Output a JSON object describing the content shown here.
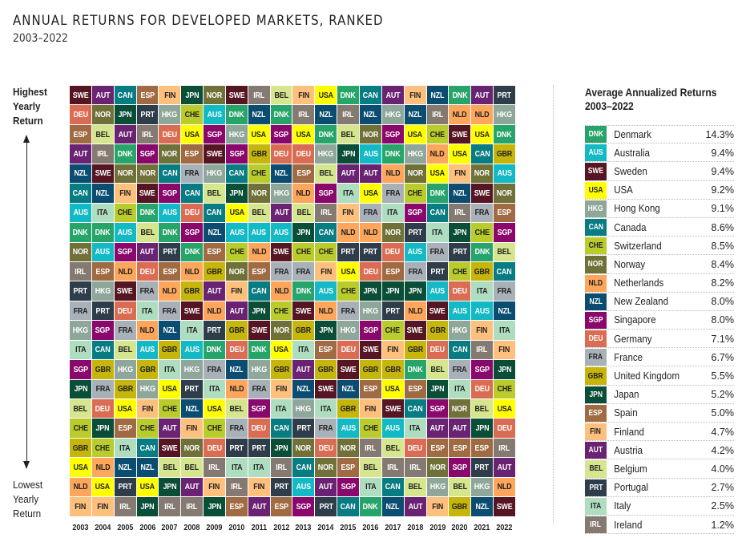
{
  "header": {
    "title": "ANNUAL RETURNS FOR DEVELOPED MARKETS, RANKED",
    "subtitle": "2003–2022"
  },
  "axis": {
    "top_label": [
      "Highest",
      "Yearly",
      "Return"
    ],
    "bottom_label": [
      "Lowest",
      "Yearly",
      "Return"
    ]
  },
  "legend": {
    "title_line1": "Average Annualized Returns",
    "title_line2": "2003–2022"
  },
  "colors": {
    "DNK": {
      "bg": "#27a46a",
      "fg": "#ffffff"
    },
    "AUS": {
      "bg": "#13b9c4",
      "fg": "#ffffff"
    },
    "SWE": {
      "bg": "#561522",
      "fg": "#ffffff"
    },
    "USA": {
      "bg": "#ffff00",
      "fg": "#222222"
    },
    "HKG": {
      "bg": "#8fa69a",
      "fg": "#ffffff"
    },
    "CAN": {
      "bg": "#087c83",
      "fg": "#ffffff"
    },
    "CHE": {
      "bg": "#b9cc2c",
      "fg": "#222222"
    },
    "NOR": {
      "bg": "#707039",
      "fg": "#ffffff"
    },
    "NLD": {
      "bg": "#fda65c",
      "fg": "#222222"
    },
    "NZL": {
      "bg": "#0b4d70",
      "fg": "#ffffff"
    },
    "SGP": {
      "bg": "#8a086c",
      "fg": "#ffffff"
    },
    "DEU": {
      "bg": "#d96c52",
      "fg": "#ffffff"
    },
    "FRA": {
      "bg": "#a8b0b8",
      "fg": "#222222"
    },
    "GBR": {
      "bg": "#c6b50a",
      "fg": "#222222"
    },
    "JPN": {
      "bg": "#0a4e38",
      "fg": "#ffffff"
    },
    "ESP": {
      "bg": "#a06a42",
      "fg": "#ffffff"
    },
    "FIN": {
      "bg": "#fec07c",
      "fg": "#222222"
    },
    "AUT": {
      "bg": "#6a2272",
      "fg": "#ffffff"
    },
    "BEL": {
      "bg": "#d6e68e",
      "fg": "#222222"
    },
    "PRT": {
      "bg": "#2f3d4a",
      "fg": "#ffffff"
    },
    "ITA": {
      "bg": "#aeddc0",
      "fg": "#222222"
    },
    "IRL": {
      "bg": "#857a72",
      "fg": "#ffffff"
    }
  },
  "chart_data": {
    "type": "heatmap",
    "title": "ANNUAL RETURNS FOR DEVELOPED MARKETS, RANKED",
    "subtitle": "2003–2022",
    "ylabel_top": "Highest Yearly Return",
    "ylabel_bottom": "Lowest Yearly Return",
    "x": [
      "2003",
      "2004",
      "2005",
      "2006",
      "2007",
      "2008",
      "2009",
      "2010",
      "2011",
      "2012",
      "2013",
      "2014",
      "2015",
      "2016",
      "2017",
      "2018",
      "2019",
      "2020",
      "2021",
      "2022"
    ],
    "rankings_by_year": {
      "2003": [
        "SWE",
        "DEU",
        "ESP",
        "AUT",
        "NZL",
        "CAN",
        "AUS",
        "DNK",
        "NOR",
        "IRL",
        "PRT",
        "FRA",
        "HKG",
        "ITA",
        "SGP",
        "JPN",
        "BEL",
        "CHE",
        "GBR",
        "USA",
        "NLD",
        "FIN"
      ],
      "2004": [
        "AUT",
        "NOR",
        "BEL",
        "IRL",
        "SWE",
        "NZL",
        "ITA",
        "DNK",
        "AUS",
        "ESP",
        "HKG",
        "PRT",
        "SGP",
        "CAN",
        "GBR",
        "FRA",
        "DEU",
        "JPN",
        "CHE",
        "NLD",
        "USA",
        "FIN"
      ],
      "2005": [
        "CAN",
        "JPN",
        "AUT",
        "DNK",
        "NOR",
        "FIN",
        "CHE",
        "AUS",
        "SGP",
        "NLD",
        "SWE",
        "DEU",
        "FRA",
        "BEL",
        "HKG",
        "GBR",
        "USA",
        "ESP",
        "ITA",
        "NZL",
        "PRT",
        "IRL"
      ],
      "2006": [
        "ESP",
        "PRT",
        "IRL",
        "SGP",
        "NOR",
        "SWE",
        "DNK",
        "BEL",
        "AUT",
        "DEU",
        "FRA",
        "ITA",
        "NLD",
        "AUS",
        "GBR",
        "HKG",
        "FIN",
        "CHE",
        "CAN",
        "NZL",
        "USA",
        "JPN"
      ],
      "2007": [
        "FIN",
        "HKG",
        "DEU",
        "NOR",
        "CAN",
        "SGP",
        "AUS",
        "DNK",
        "PRT",
        "ESP",
        "NLD",
        "FRA",
        "NZL",
        "GBR",
        "ITA",
        "USA",
        "CHE",
        "AUT",
        "SWE",
        "BEL",
        "JPN",
        "IRL"
      ],
      "2008": [
        "JPN",
        "CHE",
        "USA",
        "ESP",
        "FRA",
        "CAN",
        "DEU",
        "SGP",
        "DNK",
        "NLD",
        "GBR",
        "SWE",
        "ITA",
        "AUS",
        "HKG",
        "PRT",
        "NZL",
        "FIN",
        "NOR",
        "BEL",
        "AUT",
        "IRL"
      ],
      "2009": [
        "NOR",
        "AUS",
        "SGP",
        "SWE",
        "HKG",
        "BEL",
        "CAN",
        "NZL",
        "ESP",
        "GBR",
        "AUT",
        "NLD",
        "PRT",
        "DNK",
        "FRA",
        "ITA",
        "USA",
        "CHE",
        "DEU",
        "IRL",
        "FIN",
        "JPN"
      ],
      "2010": [
        "SWE",
        "DNK",
        "HKG",
        "SGP",
        "CAN",
        "JPN",
        "USA",
        "AUS",
        "CHE",
        "NOR",
        "FIN",
        "AUT",
        "GBR",
        "DEU",
        "NZL",
        "NLD",
        "BEL",
        "FRA",
        "PRT",
        "ITA",
        "IRL",
        "ESP"
      ],
      "2011": [
        "IRL",
        "NZL",
        "USA",
        "GBR",
        "CHE",
        "NOR",
        "BEL",
        "AUS",
        "NLD",
        "ESP",
        "CAN",
        "JPN",
        "SWE",
        "DNK",
        "HKG",
        "FRA",
        "SGP",
        "DEU",
        "PRT",
        "ITA",
        "FIN",
        "AUT"
      ],
      "2012": [
        "BEL",
        "DNK",
        "SGP",
        "DEU",
        "NZL",
        "HKG",
        "AUT",
        "AUS",
        "SWE",
        "FRA",
        "NLD",
        "CHE",
        "NOR",
        "USA",
        "GBR",
        "FIN",
        "ITA",
        "CAN",
        "JPN",
        "IRL",
        "PRT",
        "ESP"
      ],
      "2013": [
        "FIN",
        "IRL",
        "USA",
        "DEU",
        "ESP",
        "NLD",
        "BEL",
        "JPN",
        "CHE",
        "FRA",
        "DNK",
        "SWE",
        "GBR",
        "ITA",
        "AUT",
        "NZL",
        "HKG",
        "PRT",
        "NOR",
        "CAN",
        "AUS",
        "SGP"
      ],
      "2014": [
        "USA",
        "NZL",
        "DNK",
        "HKG",
        "BEL",
        "SGP",
        "IRL",
        "CAN",
        "CHE",
        "FIN",
        "AUS",
        "NLD",
        "JPN",
        "ESP",
        "GBR",
        "SWE",
        "ITA",
        "FRA",
        "DEU",
        "NOR",
        "AUT",
        "PRT"
      ],
      "2015": [
        "DNK",
        "IRL",
        "BEL",
        "JPN",
        "AUT",
        "ITA",
        "FIN",
        "NLD",
        "PRT",
        "USA",
        "CHE",
        "FRA",
        "HKG",
        "DEU",
        "SWE",
        "NZL",
        "GBR",
        "AUS",
        "NOR",
        "ESP",
        "SGP",
        "CAN"
      ],
      "2016": [
        "CAN",
        "NZL",
        "NOR",
        "AUS",
        "AUT",
        "USA",
        "FRA",
        "NLD",
        "PRT",
        "DEU",
        "JPN",
        "HKG",
        "SGP",
        "SWE",
        "GBR",
        "ESP",
        "FIN",
        "CHE",
        "IRL",
        "BEL",
        "ITA",
        "DNK"
      ],
      "2017": [
        "AUT",
        "HKG",
        "SGP",
        "DNK",
        "NLD",
        "FRA",
        "ITA",
        "NOR",
        "DEU",
        "ESP",
        "JPN",
        "PRT",
        "CHE",
        "FIN",
        "GBR",
        "USA",
        "SWE",
        "AUS",
        "BEL",
        "IRL",
        "CAN",
        "NZL"
      ],
      "2018": [
        "FIN",
        "NZL",
        "USA",
        "HKG",
        "NOR",
        "CHE",
        "SGP",
        "PRT",
        "AUS",
        "FRA",
        "JPN",
        "NLD",
        "SWE",
        "GBR",
        "DNK",
        "ESP",
        "CAN",
        "ITA",
        "DEU",
        "IRL",
        "BEL",
        "AUT"
      ],
      "2019": [
        "NZL",
        "IRL",
        "CHE",
        "NLD",
        "USA",
        "DNK",
        "CAN",
        "ITA",
        "FRA",
        "PRT",
        "AUS",
        "SWE",
        "GBR",
        "DEU",
        "BEL",
        "JPN",
        "SGP",
        "AUT",
        "ESP",
        "NOR",
        "HKG",
        "FIN"
      ],
      "2020": [
        "DNK",
        "NLD",
        "SWE",
        "USA",
        "FIN",
        "NZL",
        "IRL",
        "JPN",
        "PRT",
        "CHE",
        "DEU",
        "AUS",
        "HKG",
        "CAN",
        "FRA",
        "ITA",
        "NOR",
        "AUT",
        "ESP",
        "SGP",
        "BEL",
        "GBR"
      ],
      "2021": [
        "AUT",
        "NLD",
        "USA",
        "CAN",
        "NOR",
        "SWE",
        "FRA",
        "CHE",
        "DNK",
        "GBR",
        "ITA",
        "AUS",
        "FIN",
        "IRL",
        "SGP",
        "DEU",
        "BEL",
        "JPN",
        "ESP",
        "PRT",
        "HKG",
        "NZL"
      ],
      "2022": [
        "PRT",
        "HKG",
        "DNK",
        "GBR",
        "AUS",
        "NOR",
        "ESP",
        "SGP",
        "BEL",
        "CAN",
        "FRA",
        "NZL",
        "ITA",
        "FIN",
        "JPN",
        "CHE",
        "USA",
        "DEU",
        "IRL",
        "AUT",
        "NLD",
        "SWE"
      ]
    },
    "legend_title": "Average Annualized Returns 2003–2022",
    "average_annualized_returns": [
      {
        "code": "DNK",
        "name": "Denmark",
        "value": "14.3%"
      },
      {
        "code": "AUS",
        "name": "Australia",
        "value": "9.4%"
      },
      {
        "code": "SWE",
        "name": "Sweden",
        "value": "9.4%"
      },
      {
        "code": "USA",
        "name": "USA",
        "value": "9.2%"
      },
      {
        "code": "HKG",
        "name": "Hong Kong",
        "value": "9.1%"
      },
      {
        "code": "CAN",
        "name": "Canada",
        "value": "8.6%"
      },
      {
        "code": "CHE",
        "name": "Switzerland",
        "value": "8.5%"
      },
      {
        "code": "NOR",
        "name": "Norway",
        "value": "8.4%"
      },
      {
        "code": "NLD",
        "name": "Netherlands",
        "value": "8.2%"
      },
      {
        "code": "NZL",
        "name": "New Zealand",
        "value": "8.0%"
      },
      {
        "code": "SGP",
        "name": "Singapore",
        "value": "8.0%"
      },
      {
        "code": "DEU",
        "name": "Germany",
        "value": "7.1%"
      },
      {
        "code": "FRA",
        "name": "France",
        "value": "6.7%"
      },
      {
        "code": "GBR",
        "name": "United Kingdom",
        "value": "5.5%"
      },
      {
        "code": "JPN",
        "name": "Japan",
        "value": "5.2%"
      },
      {
        "code": "ESP",
        "name": "Spain",
        "value": "5.0%"
      },
      {
        "code": "FIN",
        "name": "Finland",
        "value": "4.7%"
      },
      {
        "code": "AUT",
        "name": "Austria",
        "value": "4.2%"
      },
      {
        "code": "BEL",
        "name": "Belgium",
        "value": "4.0%"
      },
      {
        "code": "PRT",
        "name": "Portugal",
        "value": "2.7%"
      },
      {
        "code": "ITA",
        "name": "Italy",
        "value": "2.5%"
      },
      {
        "code": "IRL",
        "name": "Ireland",
        "value": "1.2%"
      }
    ]
  }
}
